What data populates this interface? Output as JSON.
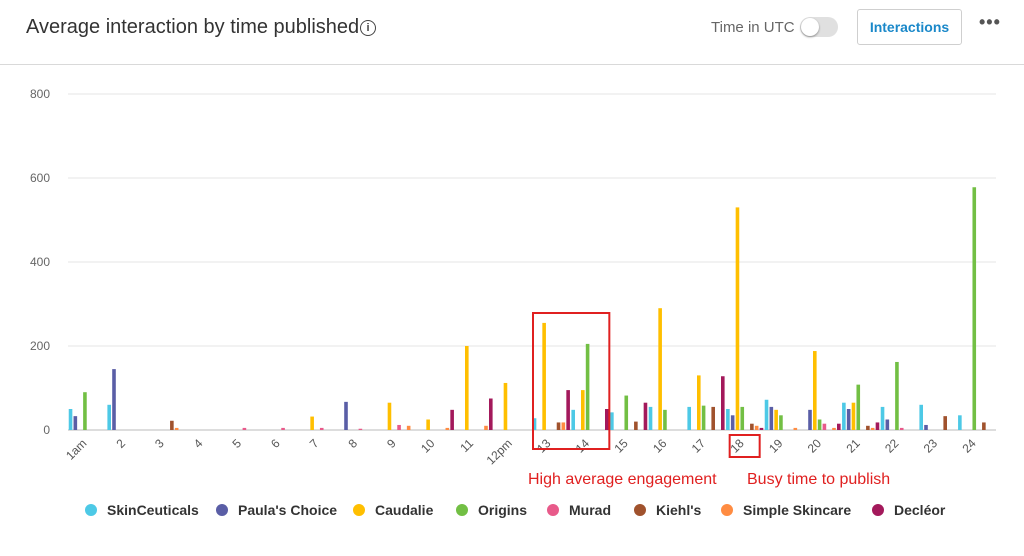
{
  "header": {
    "title": "Average interaction by time published",
    "info_icon": "info-icon",
    "utc_label": "Time in UTC",
    "utc_toggle_on": false,
    "metric_button": "Interactions",
    "more_icon": "more-horizontal-icon",
    "more_glyph": "•••"
  },
  "annotations": {
    "engagement_label": "High average engagement",
    "busy_label": "Busy time to publish",
    "color": "#e02020"
  },
  "chart_data": {
    "type": "bar",
    "ylim": [
      0,
      800
    ],
    "yticks": [
      0,
      200,
      400,
      600,
      800
    ],
    "grid": true,
    "legend_position": "bottom",
    "categories": [
      "1am",
      "2",
      "3",
      "4",
      "5",
      "6",
      "7",
      "8",
      "9",
      "10",
      "11",
      "12pm",
      "13",
      "14",
      "15",
      "16",
      "17",
      "18",
      "19",
      "20",
      "21",
      "22",
      "23",
      "24"
    ],
    "series": [
      {
        "name": "SkinCeuticals",
        "color": "#4dc9e6",
        "values": [
          50,
          60,
          0,
          0,
          0,
          0,
          0,
          0,
          0,
          0,
          0,
          0,
          28,
          48,
          42,
          55,
          55,
          50,
          72,
          0,
          65,
          55,
          60,
          35
        ]
      },
      {
        "name": "Paula's Choice",
        "color": "#5a5ea6",
        "values": [
          33,
          145,
          0,
          0,
          0,
          0,
          0,
          67,
          0,
          0,
          0,
          0,
          0,
          0,
          0,
          0,
          0,
          35,
          55,
          48,
          50,
          25,
          12,
          0
        ]
      },
      {
        "name": "Caudalie",
        "color": "#ffbf00",
        "values": [
          0,
          0,
          0,
          0,
          0,
          0,
          32,
          0,
          65,
          25,
          200,
          112,
          255,
          95,
          0,
          290,
          130,
          530,
          48,
          188,
          65,
          0,
          0,
          0
        ]
      },
      {
        "name": "Origins",
        "color": "#72bf44",
        "values": [
          90,
          0,
          0,
          0,
          0,
          0,
          0,
          0,
          0,
          0,
          0,
          0,
          0,
          205,
          82,
          48,
          58,
          55,
          35,
          25,
          108,
          162,
          0,
          578
        ]
      },
      {
        "name": "Murad",
        "color": "#e85a8a",
        "values": [
          0,
          0,
          0,
          0,
          5,
          5,
          5,
          3,
          12,
          0,
          0,
          0,
          0,
          0,
          0,
          0,
          0,
          0,
          0,
          15,
          0,
          5,
          0,
          0
        ]
      },
      {
        "name": "Kiehl's",
        "color": "#a0522d",
        "values": [
          0,
          0,
          22,
          0,
          0,
          0,
          0,
          0,
          0,
          0,
          0,
          0,
          18,
          0,
          20,
          0,
          55,
          15,
          0,
          0,
          10,
          0,
          33,
          18
        ]
      },
      {
        "name": "Simple Skincare",
        "color": "#ff8c42",
        "values": [
          0,
          0,
          5,
          0,
          0,
          0,
          0,
          0,
          10,
          5,
          10,
          0,
          18,
          0,
          0,
          0,
          0,
          10,
          5,
          5,
          5,
          0,
          0,
          0
        ]
      },
      {
        "name": "Decléor",
        "color": "#a3195b",
        "values": [
          0,
          0,
          0,
          0,
          0,
          0,
          0,
          0,
          0,
          48,
          75,
          0,
          95,
          50,
          65,
          0,
          128,
          5,
          0,
          15,
          18,
          0,
          0,
          0
        ]
      }
    ]
  }
}
